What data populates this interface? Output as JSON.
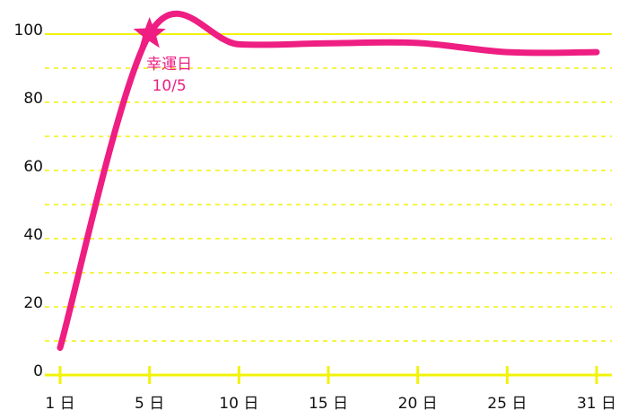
{
  "chart_data": {
    "type": "line",
    "categories": [
      "1 日",
      "5 日",
      "10 日",
      "15 日",
      "20 日",
      "25 日",
      "31 日"
    ],
    "values": [
      8,
      100,
      97,
      97.3,
      97.4,
      94.7,
      94.7
    ],
    "color": "#ee1e82",
    "axis_color": "#f2f20a",
    "ylim": [
      0,
      100
    ],
    "yticks": [
      0,
      20,
      40,
      60,
      80,
      100
    ],
    "grid": true,
    "annotation": {
      "at": "5 日",
      "lines": [
        "幸運日",
        "10/5"
      ]
    }
  }
}
